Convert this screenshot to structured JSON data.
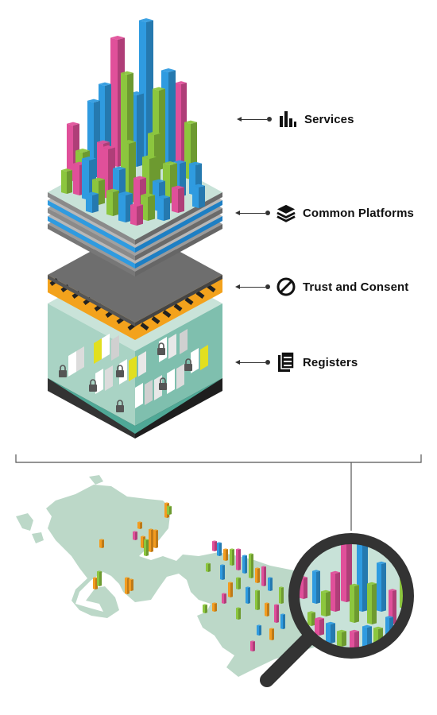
{
  "layers": [
    {
      "id": "services",
      "label": "Services",
      "icon": "bar-chart-icon"
    },
    {
      "id": "platforms",
      "label": "Common Platforms",
      "icon": "stacked-layers-icon"
    },
    {
      "id": "trust",
      "label": "Trust and Consent",
      "icon": "prohibited-circle-icon"
    },
    {
      "id": "registers",
      "label": "Registers",
      "icon": "document-icon"
    }
  ],
  "colors": {
    "pink": "#e0509a",
    "blue": "#2f9be0",
    "green": "#8cc63e",
    "orange": "#f39c1f",
    "land": "#bcd8c8",
    "hazard_yellow": "#f3a21c",
    "dark_grey": "#2d2d2d",
    "slab_grey": "#6e6e6e",
    "glass": "#a9d3c4",
    "text": "#111111"
  },
  "illustration": {
    "top": "city-of-bars-on-stacked-platforms",
    "bottom": "uk-map-with-magnifying-glass"
  }
}
